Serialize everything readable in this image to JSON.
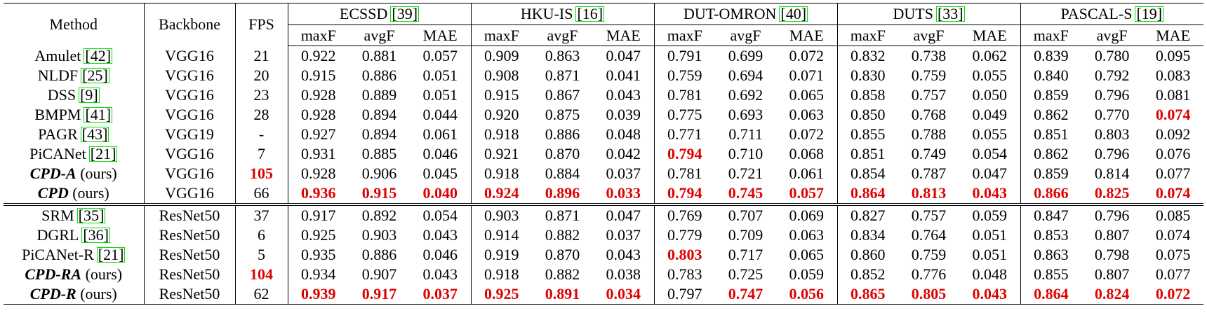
{
  "table": {
    "header": {
      "method": "Method",
      "backbone": "Backbone",
      "fps": "FPS",
      "datasets": [
        {
          "name": "ECSSD",
          "ref": "[39]"
        },
        {
          "name": "HKU-IS",
          "ref": "[16]"
        },
        {
          "name": "DUT-OMRON",
          "ref": "[40]"
        },
        {
          "name": "DUTS",
          "ref": "[33]"
        },
        {
          "name": "PASCAL-S",
          "ref": "[19]"
        }
      ],
      "metrics": [
        "maxF",
        "avgF",
        "MAE"
      ]
    },
    "groups": [
      {
        "rows": [
          {
            "method": "Amulet",
            "ref": "[42]",
            "backbone": "VGG16",
            "fps": "21",
            "scores": [
              "0.922",
              "0.881",
              "0.057",
              "0.909",
              "0.863",
              "0.047",
              "0.791",
              "0.699",
              "0.072",
              "0.832",
              "0.738",
              "0.062",
              "0.839",
              "0.780",
              "0.095"
            ],
            "best": []
          },
          {
            "method": "NLDF",
            "ref": "[25]",
            "backbone": "VGG16",
            "fps": "20",
            "scores": [
              "0.915",
              "0.886",
              "0.051",
              "0.908",
              "0.871",
              "0.041",
              "0.759",
              "0.694",
              "0.071",
              "0.830",
              "0.759",
              "0.055",
              "0.840",
              "0.792",
              "0.083"
            ],
            "best": []
          },
          {
            "method": "DSS",
            "ref": "[9]",
            "backbone": "VGG16",
            "fps": "23",
            "scores": [
              "0.928",
              "0.889",
              "0.051",
              "0.915",
              "0.867",
              "0.043",
              "0.781",
              "0.692",
              "0.065",
              "0.858",
              "0.757",
              "0.050",
              "0.859",
              "0.796",
              "0.081"
            ],
            "best": []
          },
          {
            "method": "BMPM",
            "ref": "[41]",
            "backbone": "VGG16",
            "fps": "28",
            "scores": [
              "0.928",
              "0.894",
              "0.044",
              "0.920",
              "0.875",
              "0.039",
              "0.775",
              "0.693",
              "0.063",
              "0.850",
              "0.768",
              "0.049",
              "0.862",
              "0.770",
              "0.074"
            ],
            "best": [
              14
            ]
          },
          {
            "method": "PAGR",
            "ref": "[43]",
            "backbone": "VGG19",
            "fps": "-",
            "scores": [
              "0.927",
              "0.894",
              "0.061",
              "0.918",
              "0.886",
              "0.048",
              "0.771",
              "0.711",
              "0.072",
              "0.855",
              "0.788",
              "0.055",
              "0.851",
              "0.803",
              "0.092"
            ],
            "best": []
          },
          {
            "method": "PiCANet",
            "ref": "[21]",
            "backbone": "VGG16",
            "fps": "7",
            "scores": [
              "0.931",
              "0.885",
              "0.046",
              "0.921",
              "0.870",
              "0.042",
              "0.794",
              "0.710",
              "0.068",
              "0.851",
              "0.749",
              "0.054",
              "0.862",
              "0.796",
              "0.076"
            ],
            "best": [
              6
            ]
          },
          {
            "method": "CPD-A",
            "suffix": "(ours)",
            "backbone": "VGG16",
            "fps": "105",
            "fps_best": true,
            "scores": [
              "0.928",
              "0.906",
              "0.045",
              "0.918",
              "0.884",
              "0.037",
              "0.781",
              "0.721",
              "0.061",
              "0.854",
              "0.787",
              "0.047",
              "0.859",
              "0.814",
              "0.077"
            ],
            "best": []
          },
          {
            "method": "CPD",
            "suffix": "(ours)",
            "backbone": "VGG16",
            "fps": "66",
            "scores": [
              "0.936",
              "0.915",
              "0.040",
              "0.924",
              "0.896",
              "0.033",
              "0.794",
              "0.745",
              "0.057",
              "0.864",
              "0.813",
              "0.043",
              "0.866",
              "0.825",
              "0.074"
            ],
            "best": [
              0,
              1,
              2,
              3,
              4,
              5,
              6,
              7,
              8,
              9,
              10,
              11,
              12,
              13,
              14
            ]
          }
        ]
      },
      {
        "rows": [
          {
            "method": "SRM",
            "ref": "[35]",
            "backbone": "ResNet50",
            "fps": "37",
            "scores": [
              "0.917",
              "0.892",
              "0.054",
              "0.903",
              "0.871",
              "0.047",
              "0.769",
              "0.707",
              "0.069",
              "0.827",
              "0.757",
              "0.059",
              "0.847",
              "0.796",
              "0.085"
            ],
            "best": []
          },
          {
            "method": "DGRL",
            "ref": "[36]",
            "backbone": "ResNet50",
            "fps": "6",
            "scores": [
              "0.925",
              "0.903",
              "0.043",
              "0.914",
              "0.882",
              "0.037",
              "0.779",
              "0.709",
              "0.063",
              "0.834",
              "0.764",
              "0.051",
              "0.853",
              "0.807",
              "0.074"
            ],
            "best": []
          },
          {
            "method": "PiCANet-R",
            "ref": "[21]",
            "backbone": "ResNet50",
            "fps": "5",
            "scores": [
              "0.935",
              "0.886",
              "0.046",
              "0.919",
              "0.870",
              "0.043",
              "0.803",
              "0.717",
              "0.065",
              "0.860",
              "0.759",
              "0.051",
              "0.863",
              "0.798",
              "0.075"
            ],
            "best": [
              6
            ]
          },
          {
            "method": "CPD-RA",
            "suffix": "(ours)",
            "backbone": "ResNet50",
            "fps": "104",
            "fps_best": true,
            "scores": [
              "0.934",
              "0.907",
              "0.043",
              "0.918",
              "0.882",
              "0.038",
              "0.783",
              "0.725",
              "0.059",
              "0.852",
              "0.776",
              "0.048",
              "0.855",
              "0.807",
              "0.077"
            ],
            "best": []
          },
          {
            "method": "CPD-R",
            "suffix": "(ours)",
            "backbone": "ResNet50",
            "fps": "62",
            "scores": [
              "0.939",
              "0.917",
              "0.037",
              "0.925",
              "0.891",
              "0.034",
              "0.797",
              "0.747",
              "0.056",
              "0.865",
              "0.805",
              "0.043",
              "0.864",
              "0.824",
              "0.072"
            ],
            "best": [
              0,
              1,
              2,
              3,
              4,
              5,
              7,
              8,
              9,
              10,
              11,
              12,
              13,
              14
            ]
          }
        ]
      }
    ]
  }
}
